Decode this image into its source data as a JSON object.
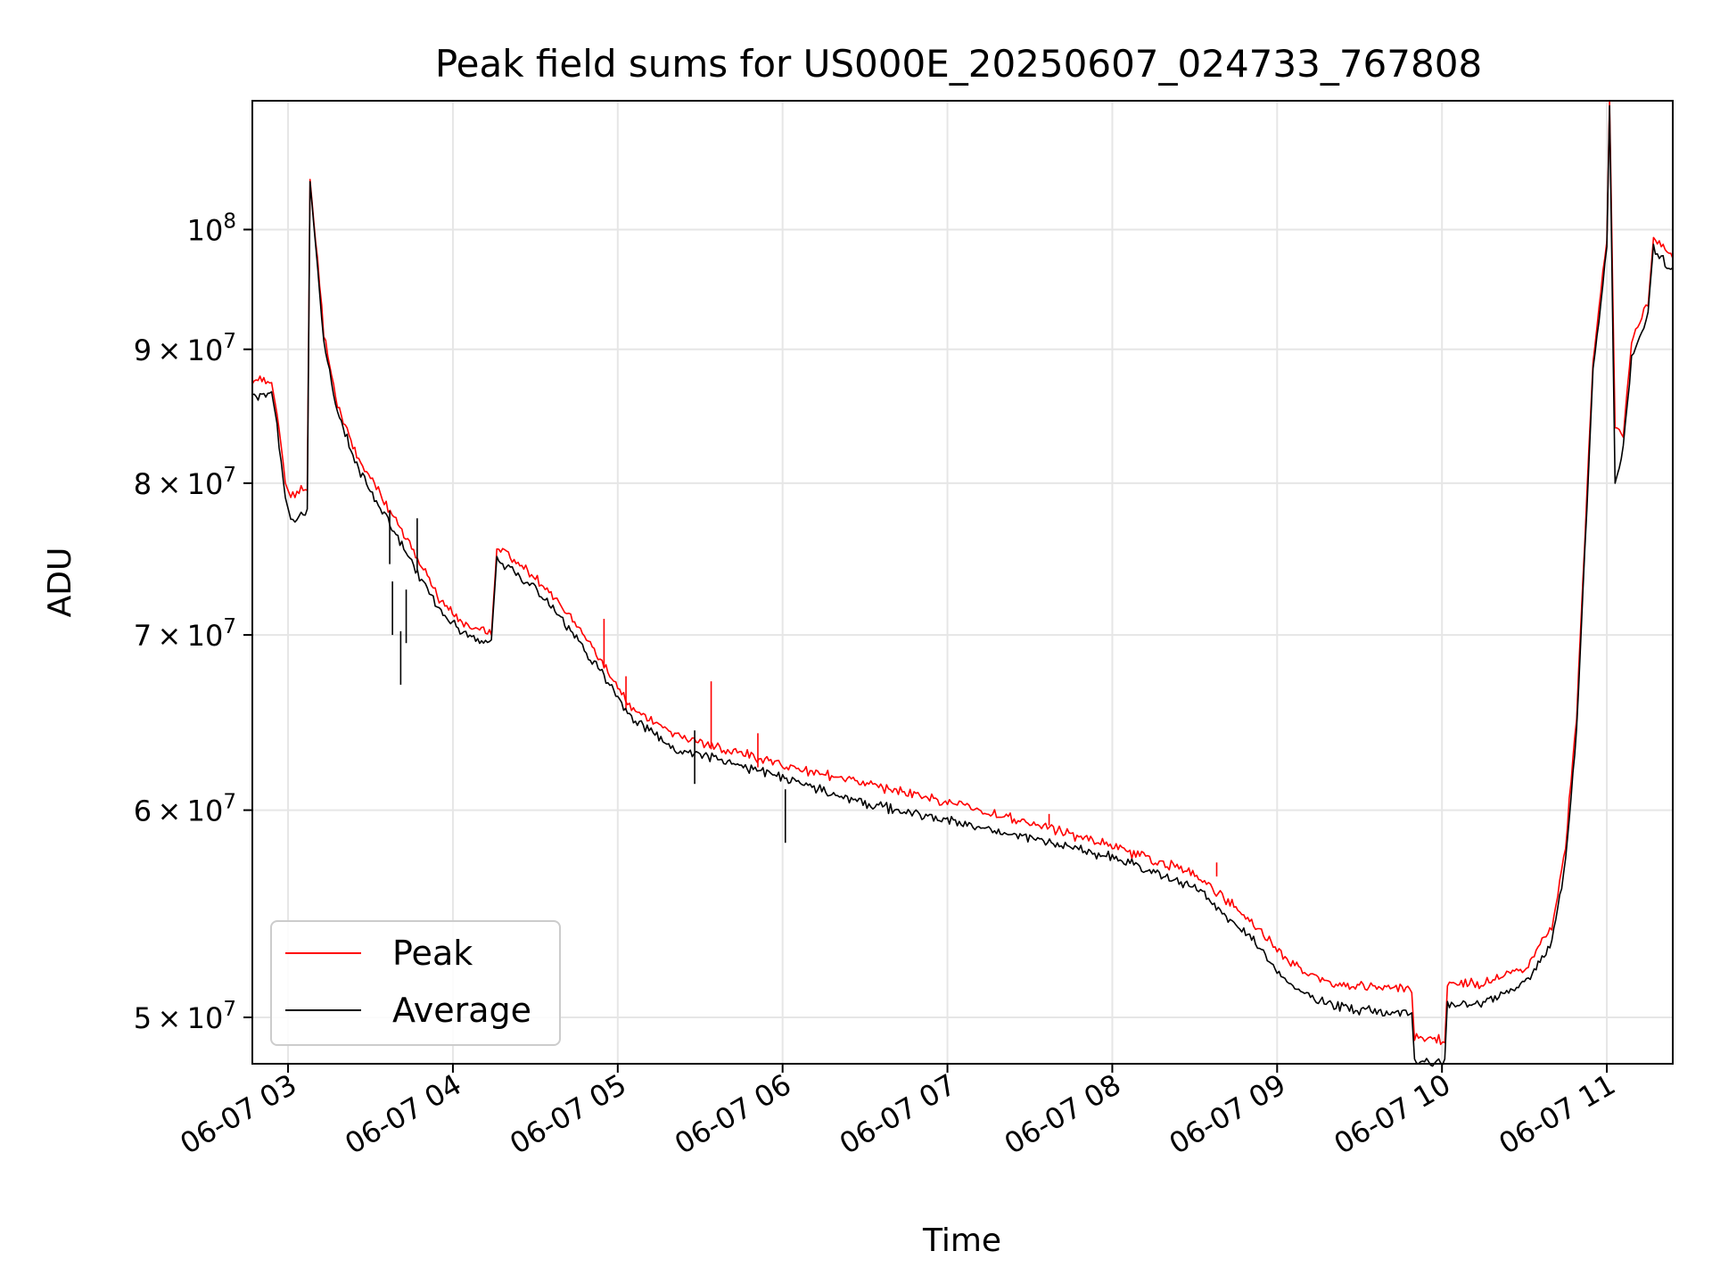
{
  "chart_data": {
    "type": "line",
    "title": "Peak field sums for US000E_20250607_024733_767808",
    "xlabel": "Time",
    "ylabel": "ADU",
    "x_axis": {
      "type": "datetime",
      "range": [
        "2025-06-07 02:47",
        "2025-06-07 11:24"
      ],
      "ticks": [
        "2025-06-07 03:00",
        "2025-06-07 04:00",
        "2025-06-07 05:00",
        "2025-06-07 06:00",
        "2025-06-07 07:00",
        "2025-06-07 08:00",
        "2025-06-07 09:00",
        "2025-06-07 10:00",
        "2025-06-07 11:00"
      ],
      "tick_labels": [
        "06-07 03",
        "06-07 04",
        "06-07 05",
        "06-07 06",
        "06-07 07",
        "06-07 08",
        "06-07 09",
        "06-07 10",
        "06-07 11"
      ]
    },
    "y_axis": {
      "scale": "log",
      "range": [
        48000000,
        112000000
      ],
      "ticks": [
        50000000,
        60000000,
        70000000,
        80000000,
        90000000,
        100000000
      ],
      "tick_labels": [
        {
          "mant": "5",
          "base": "10",
          "exp": "7"
        },
        {
          "mant": "6",
          "base": "10",
          "exp": "7"
        },
        {
          "mant": "7",
          "base": "10",
          "exp": "7"
        },
        {
          "mant": "8",
          "base": "10",
          "exp": "7"
        },
        {
          "mant": "9",
          "base": "10",
          "exp": "7"
        },
        {
          "mant": "",
          "base": "10",
          "exp": "8"
        }
      ]
    },
    "grid": true,
    "legend": {
      "position": "lower left",
      "entries": [
        "Peak",
        "Average"
      ]
    },
    "series": [
      {
        "name": "Peak",
        "color": "#ff0000",
        "points": [
          [
            "2025-06-07 02:47",
            87300000
          ],
          [
            "2025-06-07 02:54",
            87400000
          ],
          [
            "2025-06-07 02:56",
            85000000
          ],
          [
            "2025-06-07 02:59",
            80000000
          ],
          [
            "2025-06-07 03:01",
            79000000
          ],
          [
            "2025-06-07 03:07",
            79500000
          ],
          [
            "2025-06-07 03:08",
            104500000
          ],
          [
            "2025-06-07 03:10",
            99000000
          ],
          [
            "2025-06-07 03:13",
            91000000
          ],
          [
            "2025-06-07 03:18",
            85500000
          ],
          [
            "2025-06-07 03:25",
            81800000
          ],
          [
            "2025-06-07 03:35",
            78500000
          ],
          [
            "2025-06-07 03:45",
            75500000
          ],
          [
            "2025-06-07 03:55",
            72000000
          ],
          [
            "2025-06-07 04:04",
            70500000
          ],
          [
            "2025-06-07 04:14",
            70000000
          ],
          [
            "2025-06-07 04:16",
            75500000
          ],
          [
            "2025-06-07 04:30",
            73500000
          ],
          [
            "2025-06-07 04:45",
            70500000
          ],
          [
            "2025-06-07 04:55",
            68000000
          ],
          [
            "2025-06-07 05:05",
            65500000
          ],
          [
            "2025-06-07 05:20",
            64000000
          ],
          [
            "2025-06-07 05:35",
            63300000
          ],
          [
            "2025-06-07 06:00",
            62300000
          ],
          [
            "2025-06-07 06:30",
            61300000
          ],
          [
            "2025-06-07 07:00",
            60300000
          ],
          [
            "2025-06-07 07:30",
            59200000
          ],
          [
            "2025-06-07 08:00",
            58000000
          ],
          [
            "2025-06-07 08:30",
            56600000
          ],
          [
            "2025-06-07 08:50",
            54400000
          ],
          [
            "2025-06-07 09:05",
            52300000
          ],
          [
            "2025-06-07 09:20",
            51400000
          ],
          [
            "2025-06-07 09:49",
            51100000
          ],
          [
            "2025-06-07 09:50",
            49000000
          ],
          [
            "2025-06-07 10:01",
            48900000
          ],
          [
            "2025-06-07 10:02",
            51400000
          ],
          [
            "2025-06-07 10:15",
            51400000
          ],
          [
            "2025-06-07 10:30",
            52100000
          ],
          [
            "2025-06-07 10:40",
            54000000
          ],
          [
            "2025-06-07 10:45",
            58000000
          ],
          [
            "2025-06-07 10:49",
            65000000
          ],
          [
            "2025-06-07 10:52",
            76000000
          ],
          [
            "2025-06-07 10:55",
            89000000
          ],
          [
            "2025-06-07 11:00",
            99000000
          ],
          [
            "2025-06-07 11:01",
            112000000
          ],
          [
            "2025-06-07 11:03",
            84000000
          ],
          [
            "2025-06-07 11:06",
            83300000
          ],
          [
            "2025-06-07 11:09",
            90500000
          ],
          [
            "2025-06-07 11:15",
            93500000
          ],
          [
            "2025-06-07 11:17",
            99300000
          ],
          [
            "2025-06-07 11:24",
            97500000
          ]
        ]
      },
      {
        "name": "Average",
        "color": "#000000",
        "points": [
          [
            "2025-06-07 02:47",
            86500000
          ],
          [
            "2025-06-07 02:54",
            86700000
          ],
          [
            "2025-06-07 02:56",
            84300000
          ],
          [
            "2025-06-07 02:59",
            79000000
          ],
          [
            "2025-06-07 03:01",
            77500000
          ],
          [
            "2025-06-07 03:07",
            78200000
          ],
          [
            "2025-06-07 03:08",
            104300000
          ],
          [
            "2025-06-07 03:10",
            98700000
          ],
          [
            "2025-06-07 03:13",
            90700000
          ],
          [
            "2025-06-07 03:18",
            85200000
          ],
          [
            "2025-06-07 03:25",
            81500000
          ],
          [
            "2025-06-07 03:35",
            78000000
          ],
          [
            "2025-06-07 03:45",
            74800000
          ],
          [
            "2025-06-07 03:55",
            71700000
          ],
          [
            "2025-06-07 04:04",
            70200000
          ],
          [
            "2025-06-07 04:14",
            69700000
          ],
          [
            "2025-06-07 04:16",
            75000000
          ],
          [
            "2025-06-07 04:30",
            73100000
          ],
          [
            "2025-06-07 04:45",
            70000000
          ],
          [
            "2025-06-07 04:55",
            67600000
          ],
          [
            "2025-06-07 05:05",
            65200000
          ],
          [
            "2025-06-07 05:20",
            63500000
          ],
          [
            "2025-06-07 05:35",
            62900000
          ],
          [
            "2025-06-07 06:00",
            61900000
          ],
          [
            "2025-06-07 06:30",
            60500000
          ],
          [
            "2025-06-07 07:00",
            59600000
          ],
          [
            "2025-06-07 07:30",
            58700000
          ],
          [
            "2025-06-07 08:00",
            57700000
          ],
          [
            "2025-06-07 08:30",
            56200000
          ],
          [
            "2025-06-07 08:50",
            53800000
          ],
          [
            "2025-06-07 09:05",
            51500000
          ],
          [
            "2025-06-07 09:20",
            50600000
          ],
          [
            "2025-06-07 09:49",
            50200000
          ],
          [
            "2025-06-07 09:50",
            48200000
          ],
          [
            "2025-06-07 10:01",
            48200000
          ],
          [
            "2025-06-07 10:02",
            50700000
          ],
          [
            "2025-06-07 10:15",
            50700000
          ],
          [
            "2025-06-07 10:30",
            51600000
          ],
          [
            "2025-06-07 10:40",
            53500000
          ],
          [
            "2025-06-07 10:45",
            57500000
          ],
          [
            "2025-06-07 10:49",
            64500000
          ],
          [
            "2025-06-07 10:52",
            75500000
          ],
          [
            "2025-06-07 10:55",
            88500000
          ],
          [
            "2025-06-07 11:00",
            98500000
          ],
          [
            "2025-06-07 11:01",
            111500000
          ],
          [
            "2025-06-07 11:03",
            80000000
          ],
          [
            "2025-06-07 11:06",
            82700000
          ],
          [
            "2025-06-07 11:09",
            89500000
          ],
          [
            "2025-06-07 11:15",
            93000000
          ],
          [
            "2025-06-07 11:17",
            98700000
          ],
          [
            "2025-06-07 11:24",
            96700000
          ]
        ],
        "dips": [
          [
            "2025-06-07 03:37",
            74500000
          ],
          [
            "2025-06-07 03:38",
            70000000
          ],
          [
            "2025-06-07 03:41",
            67000000
          ],
          [
            "2025-06-07 03:43",
            69500000
          ],
          [
            "2025-06-07 03:47",
            74000000
          ],
          [
            "2025-06-07 05:28",
            61400000
          ],
          [
            "2025-06-07 06:01",
            58300000
          ]
        ]
      }
    ],
    "peak_spikes": [
      [
        "2025-06-07 04:55",
        71000000
      ],
      [
        "2025-06-07 05:03",
        67500000
      ],
      [
        "2025-06-07 05:34",
        67200000
      ],
      [
        "2025-06-07 05:51",
        64200000
      ],
      [
        "2025-06-07 07:37",
        59800000
      ],
      [
        "2025-06-07 08:38",
        57300000
      ]
    ]
  }
}
